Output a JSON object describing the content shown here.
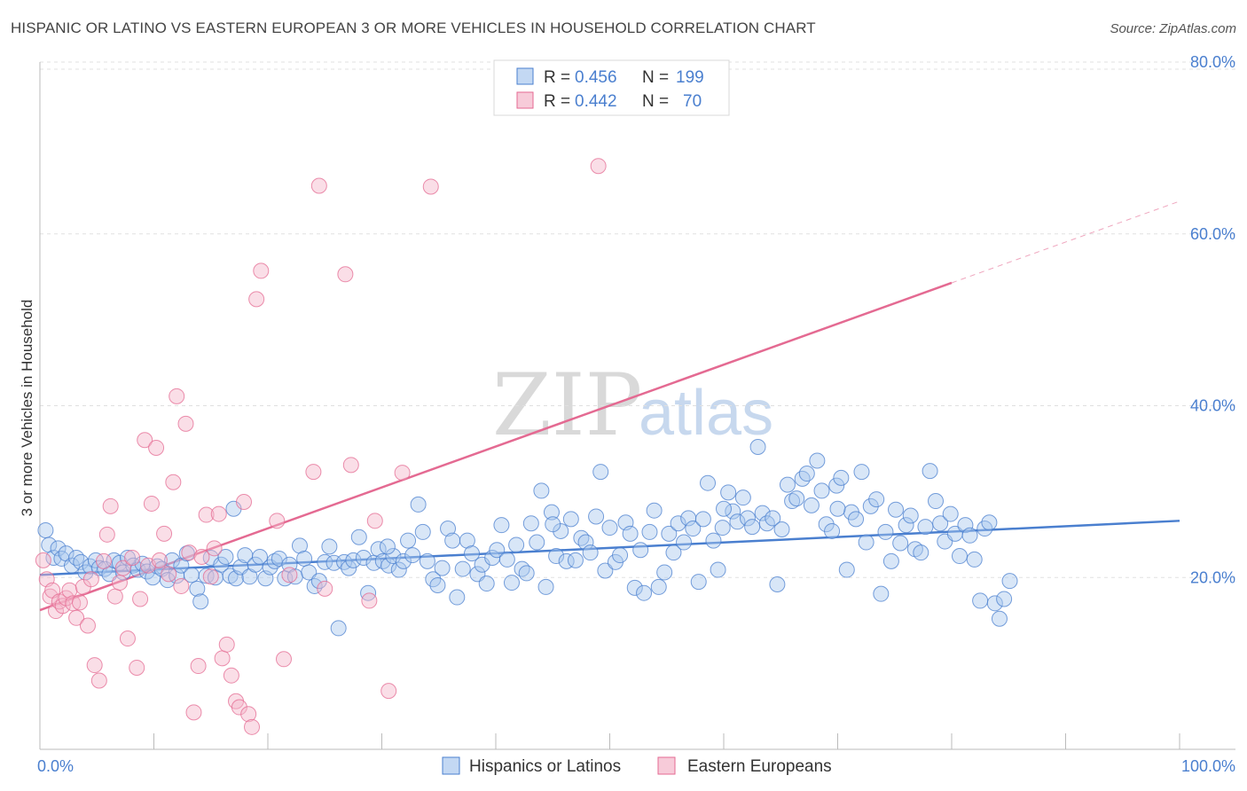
{
  "title": "HISPANIC OR LATINO VS EASTERN EUROPEAN 3 OR MORE VEHICLES IN HOUSEHOLD CORRELATION CHART",
  "source": "Source: ZipAtlas.com",
  "watermark": {
    "zip": "ZIP",
    "atlas": "atlas"
  },
  "colors": {
    "blue": "#4a7fcf",
    "blue_fill": "#a9c7ee",
    "pink": "#e46a92",
    "pink_fill": "#f4b5c9"
  },
  "legend": {
    "r_label": "R =",
    "n_label": "N =",
    "series": [
      {
        "r": "0.456",
        "n": "199"
      },
      {
        "r": "0.442",
        "n": "70"
      }
    ]
  },
  "bottom_legend": [
    "Hispanics or Latinos",
    "Eastern Europeans"
  ],
  "chart_data": {
    "type": "scatter",
    "xlabel": "",
    "ylabel": "3 or more Vehicles in Household",
    "xlim": [
      0,
      100
    ],
    "ylim": [
      0,
      80
    ],
    "x_tick_labels": [
      "0.0%",
      "100.0%"
    ],
    "y_tick_labels": [
      "20.0%",
      "40.0%",
      "60.0%",
      "80.0%"
    ],
    "y_ticks": [
      20,
      40,
      60,
      80
    ],
    "grid": true,
    "legend_position": "top-center",
    "series": [
      {
        "name": "Hispanics or Latinos",
        "color": "#4a7fcf",
        "trend": {
          "x": [
            0,
            100
          ],
          "y": [
            20.3,
            26.6
          ]
        },
        "points": [
          [
            0.5,
            25.5
          ],
          [
            0.8,
            23.8
          ],
          [
            1.2,
            22.3
          ],
          [
            1.6,
            23.4
          ],
          [
            1.9,
            22.2
          ],
          [
            2.3,
            22.8
          ],
          [
            2.8,
            21.4
          ],
          [
            3.2,
            22.3
          ],
          [
            3.6,
            21.8
          ],
          [
            4.0,
            20.6
          ],
          [
            4.4,
            21.3
          ],
          [
            4.9,
            22.0
          ],
          [
            5.2,
            21.1
          ],
          [
            5.7,
            21.0
          ],
          [
            6.1,
            20.4
          ],
          [
            6.5,
            22.0
          ],
          [
            7.0,
            21.7
          ],
          [
            7.3,
            20.6
          ],
          [
            7.7,
            22.3
          ],
          [
            8.2,
            21.4
          ],
          [
            8.6,
            20.9
          ],
          [
            9.0,
            21.6
          ],
          [
            9.4,
            20.7
          ],
          [
            9.9,
            20.0
          ],
          [
            10.3,
            21.3
          ],
          [
            10.7,
            21.0
          ],
          [
            11.2,
            19.7
          ],
          [
            11.6,
            22.0
          ],
          [
            12.0,
            20.2
          ],
          [
            12.4,
            21.4
          ],
          [
            12.9,
            22.8
          ],
          [
            13.3,
            20.3
          ],
          [
            13.8,
            18.7
          ],
          [
            14.1,
            17.2
          ],
          [
            14.6,
            20.2
          ],
          [
            15.0,
            22.3
          ],
          [
            15.4,
            20.0
          ],
          [
            15.9,
            21.5
          ],
          [
            16.3,
            22.4
          ],
          [
            16.7,
            20.2
          ],
          [
            17.2,
            19.9
          ],
          [
            17.6,
            21.2
          ],
          [
            18.0,
            22.6
          ],
          [
            18.4,
            20.1
          ],
          [
            18.9,
            21.5
          ],
          [
            19.3,
            22.4
          ],
          [
            19.8,
            19.9
          ],
          [
            20.2,
            21.2
          ],
          [
            20.6,
            21.9
          ],
          [
            21.0,
            22.2
          ],
          [
            21.5,
            19.9
          ],
          [
            21.9,
            21.5
          ],
          [
            22.4,
            20.1
          ],
          [
            22.8,
            23.7
          ],
          [
            23.2,
            22.2
          ],
          [
            23.6,
            20.6
          ],
          [
            24.1,
            19.0
          ],
          [
            24.5,
            19.6
          ],
          [
            25.0,
            21.8
          ],
          [
            25.4,
            23.6
          ],
          [
            25.8,
            21.7
          ],
          [
            26.2,
            14.1
          ],
          [
            26.7,
            21.8
          ],
          [
            27.1,
            21.1
          ],
          [
            27.5,
            22.0
          ],
          [
            28.0,
            24.7
          ],
          [
            28.4,
            22.3
          ],
          [
            28.8,
            18.2
          ],
          [
            29.3,
            21.7
          ],
          [
            29.7,
            23.3
          ],
          [
            30.1,
            21.9
          ],
          [
            30.6,
            21.4
          ],
          [
            31.0,
            22.5
          ],
          [
            31.5,
            20.9
          ],
          [
            31.9,
            21.9
          ],
          [
            32.3,
            24.3
          ],
          [
            32.7,
            22.6
          ],
          [
            33.2,
            28.5
          ],
          [
            33.6,
            25.3
          ],
          [
            34.0,
            21.9
          ],
          [
            34.5,
            19.8
          ],
          [
            34.9,
            19.1
          ],
          [
            35.3,
            21.1
          ],
          [
            35.8,
            25.7
          ],
          [
            36.2,
            24.3
          ],
          [
            36.6,
            17.7
          ],
          [
            37.1,
            21.0
          ],
          [
            37.5,
            24.3
          ],
          [
            37.9,
            22.8
          ],
          [
            38.4,
            20.4
          ],
          [
            38.8,
            21.5
          ],
          [
            39.2,
            19.3
          ],
          [
            39.7,
            22.3
          ],
          [
            40.1,
            23.2
          ],
          [
            40.5,
            26.1
          ],
          [
            41.0,
            22.1
          ],
          [
            41.4,
            19.4
          ],
          [
            41.8,
            23.8
          ],
          [
            42.3,
            21.0
          ],
          [
            42.7,
            20.5
          ],
          [
            43.1,
            26.3
          ],
          [
            43.6,
            24.1
          ],
          [
            44.0,
            30.1
          ],
          [
            44.4,
            18.9
          ],
          [
            44.9,
            27.6
          ],
          [
            45.3,
            22.5
          ],
          [
            45.7,
            25.4
          ],
          [
            46.2,
            21.9
          ],
          [
            46.6,
            26.8
          ],
          [
            47.0,
            22.0
          ],
          [
            47.5,
            24.6
          ],
          [
            47.9,
            24.1
          ],
          [
            48.3,
            22.9
          ],
          [
            48.8,
            27.1
          ],
          [
            49.2,
            32.3
          ],
          [
            49.6,
            20.8
          ],
          [
            50.0,
            25.8
          ],
          [
            50.5,
            21.8
          ],
          [
            50.9,
            22.6
          ],
          [
            51.4,
            26.4
          ],
          [
            51.8,
            25.1
          ],
          [
            52.2,
            18.8
          ],
          [
            52.7,
            23.2
          ],
          [
            53.0,
            18.2
          ],
          [
            53.5,
            25.3
          ],
          [
            53.9,
            27.8
          ],
          [
            54.3,
            18.9
          ],
          [
            54.8,
            20.6
          ],
          [
            55.2,
            25.1
          ],
          [
            55.6,
            22.9
          ],
          [
            56.0,
            26.3
          ],
          [
            56.5,
            24.1
          ],
          [
            56.9,
            26.9
          ],
          [
            57.3,
            25.7
          ],
          [
            57.8,
            19.5
          ],
          [
            58.2,
            26.8
          ],
          [
            58.6,
            31.0
          ],
          [
            59.1,
            24.3
          ],
          [
            59.5,
            20.9
          ],
          [
            59.9,
            25.8
          ],
          [
            60.4,
            29.9
          ],
          [
            60.8,
            27.7
          ],
          [
            61.2,
            26.5
          ],
          [
            61.7,
            29.3
          ],
          [
            62.1,
            26.9
          ],
          [
            62.5,
            25.9
          ],
          [
            63.0,
            35.2
          ],
          [
            63.4,
            27.5
          ],
          [
            63.8,
            26.3
          ],
          [
            64.3,
            26.9
          ],
          [
            64.7,
            19.2
          ],
          [
            65.1,
            25.6
          ],
          [
            65.6,
            30.8
          ],
          [
            66.0,
            28.9
          ],
          [
            66.4,
            29.2
          ],
          [
            66.9,
            31.5
          ],
          [
            67.3,
            32.1
          ],
          [
            67.7,
            28.4
          ],
          [
            68.2,
            33.6
          ],
          [
            68.6,
            30.1
          ],
          [
            69.0,
            26.2
          ],
          [
            69.5,
            25.4
          ],
          [
            69.9,
            30.7
          ],
          [
            70.3,
            31.6
          ],
          [
            70.8,
            20.9
          ],
          [
            71.2,
            27.6
          ],
          [
            71.6,
            26.8
          ],
          [
            72.1,
            32.3
          ],
          [
            72.5,
            24.1
          ],
          [
            72.9,
            28.3
          ],
          [
            73.4,
            29.1
          ],
          [
            73.8,
            18.1
          ],
          [
            74.2,
            25.3
          ],
          [
            74.7,
            21.9
          ],
          [
            75.1,
            27.9
          ],
          [
            75.5,
            24.0
          ],
          [
            76.0,
            26.1
          ],
          [
            76.4,
            27.2
          ],
          [
            76.8,
            23.3
          ],
          [
            77.3,
            22.9
          ],
          [
            77.7,
            25.9
          ],
          [
            78.1,
            32.4
          ],
          [
            78.6,
            28.9
          ],
          [
            79.0,
            26.3
          ],
          [
            79.4,
            24.2
          ],
          [
            79.9,
            27.4
          ],
          [
            80.3,
            25.1
          ],
          [
            80.7,
            22.5
          ],
          [
            81.2,
            26.1
          ],
          [
            81.6,
            24.9
          ],
          [
            82.0,
            22.1
          ],
          [
            82.5,
            17.3
          ],
          [
            82.9,
            25.7
          ],
          [
            83.3,
            26.4
          ],
          [
            83.8,
            17.0
          ],
          [
            84.2,
            15.2
          ],
          [
            84.6,
            17.5
          ],
          [
            85.1,
            19.6
          ],
          [
            17.0,
            28.0
          ],
          [
            30.5,
            23.6
          ],
          [
            45.0,
            26.2
          ],
          [
            60.0,
            28.0
          ],
          [
            70.0,
            28.0
          ]
        ]
      },
      {
        "name": "Eastern Europeans",
        "color": "#e46a92",
        "trend": {
          "x": [
            0,
            80
          ],
          "y": [
            16.2,
            54.3
          ]
        },
        "trend_extension": {
          "x": [
            80,
            100
          ],
          "y": [
            54.3,
            63.8
          ]
        },
        "points": [
          [
            0.3,
            22.0
          ],
          [
            0.6,
            19.8
          ],
          [
            0.9,
            17.8
          ],
          [
            1.1,
            18.5
          ],
          [
            1.4,
            16.1
          ],
          [
            1.7,
            17.2
          ],
          [
            2.0,
            16.7
          ],
          [
            2.3,
            17.6
          ],
          [
            2.6,
            18.5
          ],
          [
            2.9,
            17.0
          ],
          [
            3.2,
            15.3
          ],
          [
            3.5,
            17.1
          ],
          [
            3.8,
            18.9
          ],
          [
            4.2,
            14.4
          ],
          [
            4.5,
            19.8
          ],
          [
            4.8,
            9.8
          ],
          [
            5.2,
            8.0
          ],
          [
            5.6,
            21.9
          ],
          [
            5.9,
            25.0
          ],
          [
            6.2,
            28.3
          ],
          [
            6.6,
            17.8
          ],
          [
            7.0,
            19.4
          ],
          [
            7.3,
            21.1
          ],
          [
            7.7,
            12.9
          ],
          [
            8.1,
            22.3
          ],
          [
            8.5,
            9.5
          ],
          [
            8.8,
            17.5
          ],
          [
            9.2,
            36.0
          ],
          [
            9.5,
            21.4
          ],
          [
            9.8,
            28.6
          ],
          [
            10.2,
            35.1
          ],
          [
            10.5,
            22.0
          ],
          [
            10.9,
            25.1
          ],
          [
            11.3,
            20.4
          ],
          [
            11.7,
            31.1
          ],
          [
            12.0,
            41.1
          ],
          [
            12.4,
            19.0
          ],
          [
            12.8,
            37.9
          ],
          [
            13.1,
            22.9
          ],
          [
            13.5,
            4.3
          ],
          [
            13.9,
            9.7
          ],
          [
            14.2,
            22.4
          ],
          [
            14.6,
            27.3
          ],
          [
            15.0,
            20.1
          ],
          [
            15.3,
            23.4
          ],
          [
            15.7,
            27.4
          ],
          [
            16.0,
            10.6
          ],
          [
            16.4,
            12.2
          ],
          [
            16.8,
            8.6
          ],
          [
            17.2,
            5.6
          ],
          [
            17.5,
            4.9
          ],
          [
            17.9,
            28.8
          ],
          [
            18.3,
            4.1
          ],
          [
            18.6,
            2.6
          ],
          [
            19.0,
            52.4
          ],
          [
            19.4,
            55.7
          ],
          [
            20.8,
            26.6
          ],
          [
            21.4,
            10.5
          ],
          [
            21.9,
            20.3
          ],
          [
            24.5,
            65.6
          ],
          [
            25.0,
            18.7
          ],
          [
            26.8,
            55.3
          ],
          [
            27.3,
            33.1
          ],
          [
            28.9,
            17.3
          ],
          [
            29.4,
            26.6
          ],
          [
            30.6,
            6.8
          ],
          [
            34.3,
            65.5
          ],
          [
            49.0,
            67.9
          ],
          [
            31.8,
            32.2
          ],
          [
            24.0,
            32.3
          ]
        ]
      }
    ]
  }
}
